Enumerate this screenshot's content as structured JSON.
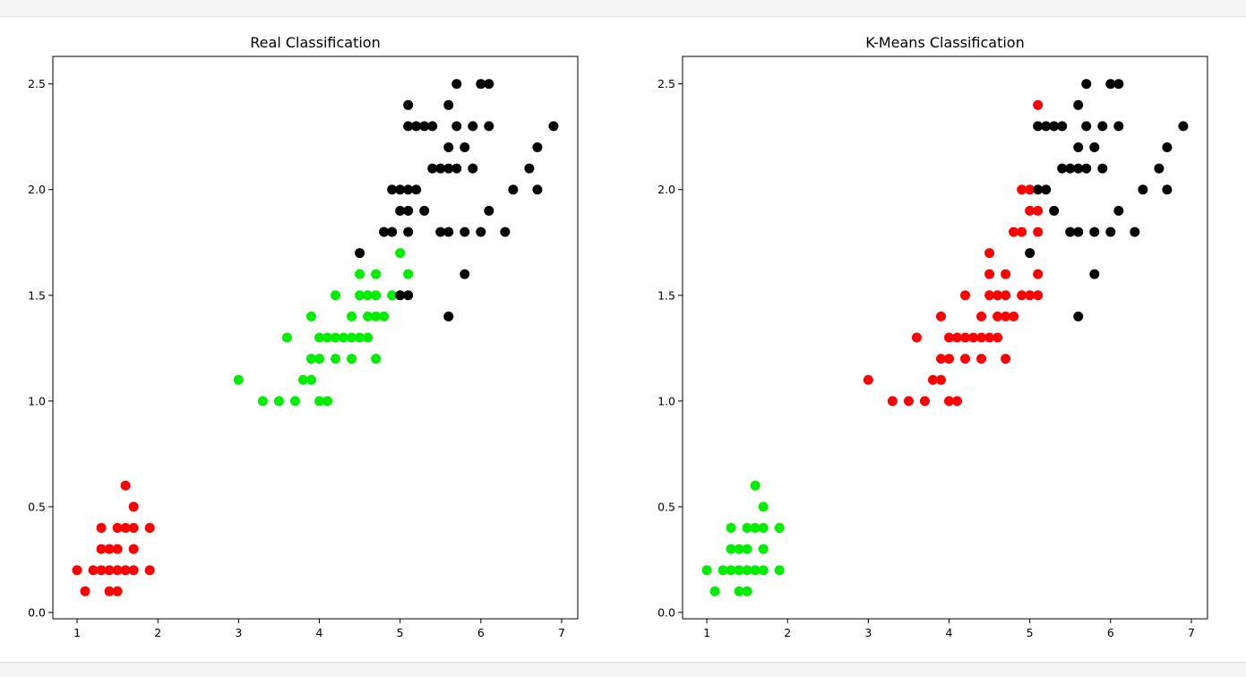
{
  "chart_data": [
    {
      "type": "scatter",
      "title": "Real Classification",
      "xlabel": "",
      "ylabel": "",
      "xlim": [
        0.7,
        7.2
      ],
      "ylim": [
        -0.03,
        2.63
      ],
      "xticks": [
        1,
        2,
        3,
        4,
        5,
        6,
        7
      ],
      "yticks": [
        0.0,
        0.5,
        1.0,
        1.5,
        2.0,
        2.5
      ],
      "grid": false,
      "series": [
        {
          "color": "#ff0000",
          "points": [
            [
              1.0,
              0.2
            ],
            [
              1.1,
              0.1
            ],
            [
              1.2,
              0.2
            ],
            [
              1.3,
              0.2
            ],
            [
              1.3,
              0.3
            ],
            [
              1.3,
              0.4
            ],
            [
              1.4,
              0.1
            ],
            [
              1.4,
              0.2
            ],
            [
              1.4,
              0.3
            ],
            [
              1.5,
              0.1
            ],
            [
              1.5,
              0.2
            ],
            [
              1.5,
              0.3
            ],
            [
              1.5,
              0.4
            ],
            [
              1.6,
              0.2
            ],
            [
              1.6,
              0.4
            ],
            [
              1.6,
              0.6
            ],
            [
              1.7,
              0.2
            ],
            [
              1.7,
              0.3
            ],
            [
              1.7,
              0.4
            ],
            [
              1.7,
              0.5
            ],
            [
              1.9,
              0.2
            ],
            [
              1.9,
              0.4
            ]
          ]
        },
        {
          "color": "#00ee00",
          "points": [
            [
              3.0,
              1.1
            ],
            [
              3.3,
              1.0
            ],
            [
              3.5,
              1.0
            ],
            [
              3.6,
              1.3
            ],
            [
              3.7,
              1.0
            ],
            [
              3.8,
              1.1
            ],
            [
              3.9,
              1.1
            ],
            [
              3.9,
              1.2
            ],
            [
              3.9,
              1.4
            ],
            [
              4.0,
              1.0
            ],
            [
              4.0,
              1.2
            ],
            [
              4.0,
              1.3
            ],
            [
              4.1,
              1.0
            ],
            [
              4.1,
              1.3
            ],
            [
              4.2,
              1.2
            ],
            [
              4.2,
              1.3
            ],
            [
              4.2,
              1.5
            ],
            [
              4.3,
              1.3
            ],
            [
              4.4,
              1.2
            ],
            [
              4.4,
              1.3
            ],
            [
              4.4,
              1.4
            ],
            [
              4.5,
              1.3
            ],
            [
              4.5,
              1.5
            ],
            [
              4.5,
              1.6
            ],
            [
              4.6,
              1.3
            ],
            [
              4.6,
              1.4
            ],
            [
              4.6,
              1.5
            ],
            [
              4.7,
              1.2
            ],
            [
              4.7,
              1.4
            ],
            [
              4.7,
              1.5
            ],
            [
              4.7,
              1.6
            ],
            [
              4.8,
              1.4
            ],
            [
              4.8,
              1.8
            ],
            [
              4.9,
              1.5
            ],
            [
              5.0,
              1.7
            ],
            [
              5.1,
              1.6
            ]
          ]
        },
        {
          "color": "#000000",
          "points": [
            [
              4.5,
              1.7
            ],
            [
              4.8,
              1.8
            ],
            [
              4.9,
              1.8
            ],
            [
              4.9,
              2.0
            ],
            [
              5.0,
              1.5
            ],
            [
              5.0,
              1.9
            ],
            [
              5.0,
              2.0
            ],
            [
              5.1,
              1.5
            ],
            [
              5.1,
              1.8
            ],
            [
              5.1,
              1.9
            ],
            [
              5.1,
              2.0
            ],
            [
              5.1,
              2.3
            ],
            [
              5.1,
              2.4
            ],
            [
              5.2,
              2.0
            ],
            [
              5.2,
              2.3
            ],
            [
              5.3,
              1.9
            ],
            [
              5.3,
              2.3
            ],
            [
              5.4,
              2.1
            ],
            [
              5.4,
              2.3
            ],
            [
              5.5,
              1.8
            ],
            [
              5.5,
              2.1
            ],
            [
              5.6,
              1.4
            ],
            [
              5.6,
              1.8
            ],
            [
              5.6,
              2.1
            ],
            [
              5.6,
              2.2
            ],
            [
              5.6,
              2.4
            ],
            [
              5.7,
              2.1
            ],
            [
              5.7,
              2.3
            ],
            [
              5.7,
              2.5
            ],
            [
              5.8,
              1.6
            ],
            [
              5.8,
              1.8
            ],
            [
              5.8,
              2.2
            ],
            [
              5.9,
              2.1
            ],
            [
              5.9,
              2.3
            ],
            [
              6.0,
              1.8
            ],
            [
              6.0,
              2.5
            ],
            [
              6.1,
              1.9
            ],
            [
              6.1,
              2.3
            ],
            [
              6.1,
              2.5
            ],
            [
              6.3,
              1.8
            ],
            [
              6.4,
              2.0
            ],
            [
              6.6,
              2.1
            ],
            [
              6.7,
              2.0
            ],
            [
              6.7,
              2.2
            ],
            [
              6.9,
              2.3
            ]
          ]
        }
      ]
    },
    {
      "type": "scatter",
      "title": "K-Means Classification",
      "xlabel": "",
      "ylabel": "",
      "xlim": [
        0.7,
        7.2
      ],
      "ylim": [
        -0.03,
        2.63
      ],
      "xticks": [
        1,
        2,
        3,
        4,
        5,
        6,
        7
      ],
      "yticks": [
        0.0,
        0.5,
        1.0,
        1.5,
        2.0,
        2.5
      ],
      "grid": false,
      "series": [
        {
          "color": "#00ee00",
          "points": [
            [
              1.0,
              0.2
            ],
            [
              1.1,
              0.1
            ],
            [
              1.2,
              0.2
            ],
            [
              1.3,
              0.2
            ],
            [
              1.3,
              0.3
            ],
            [
              1.3,
              0.4
            ],
            [
              1.4,
              0.1
            ],
            [
              1.4,
              0.2
            ],
            [
              1.4,
              0.3
            ],
            [
              1.5,
              0.1
            ],
            [
              1.5,
              0.2
            ],
            [
              1.5,
              0.3
            ],
            [
              1.5,
              0.4
            ],
            [
              1.6,
              0.2
            ],
            [
              1.6,
              0.4
            ],
            [
              1.6,
              0.6
            ],
            [
              1.7,
              0.2
            ],
            [
              1.7,
              0.3
            ],
            [
              1.7,
              0.4
            ],
            [
              1.7,
              0.5
            ],
            [
              1.9,
              0.2
            ],
            [
              1.9,
              0.4
            ]
          ]
        },
        {
          "color": "#ff0000",
          "points": [
            [
              3.0,
              1.1
            ],
            [
              3.3,
              1.0
            ],
            [
              3.5,
              1.0
            ],
            [
              3.6,
              1.3
            ],
            [
              3.7,
              1.0
            ],
            [
              3.8,
              1.1
            ],
            [
              3.9,
              1.1
            ],
            [
              3.9,
              1.2
            ],
            [
              3.9,
              1.4
            ],
            [
              4.0,
              1.0
            ],
            [
              4.0,
              1.2
            ],
            [
              4.0,
              1.3
            ],
            [
              4.1,
              1.0
            ],
            [
              4.1,
              1.3
            ],
            [
              4.2,
              1.2
            ],
            [
              4.2,
              1.3
            ],
            [
              4.2,
              1.5
            ],
            [
              4.3,
              1.3
            ],
            [
              4.4,
              1.2
            ],
            [
              4.4,
              1.3
            ],
            [
              4.4,
              1.4
            ],
            [
              4.5,
              1.3
            ],
            [
              4.5,
              1.5
            ],
            [
              4.5,
              1.6
            ],
            [
              4.5,
              1.7
            ],
            [
              4.6,
              1.3
            ],
            [
              4.6,
              1.4
            ],
            [
              4.6,
              1.5
            ],
            [
              4.7,
              1.2
            ],
            [
              4.7,
              1.4
            ],
            [
              4.7,
              1.5
            ],
            [
              4.7,
              1.6
            ],
            [
              4.8,
              1.4
            ],
            [
              4.8,
              1.8
            ],
            [
              4.9,
              1.5
            ],
            [
              4.9,
              1.8
            ],
            [
              4.9,
              2.0
            ],
            [
              5.0,
              1.5
            ],
            [
              5.0,
              1.9
            ],
            [
              5.0,
              2.0
            ],
            [
              5.1,
              1.5
            ],
            [
              5.1,
              1.6
            ],
            [
              5.1,
              1.8
            ],
            [
              5.1,
              1.9
            ],
            [
              5.1,
              2.4
            ]
          ]
        },
        {
          "color": "#000000",
          "points": [
            [
              5.0,
              1.7
            ],
            [
              5.1,
              2.0
            ],
            [
              5.1,
              2.3
            ],
            [
              5.2,
              2.0
            ],
            [
              5.2,
              2.3
            ],
            [
              5.3,
              1.9
            ],
            [
              5.3,
              2.3
            ],
            [
              5.4,
              2.1
            ],
            [
              5.4,
              2.3
            ],
            [
              5.5,
              1.8
            ],
            [
              5.5,
              2.1
            ],
            [
              5.6,
              1.4
            ],
            [
              5.6,
              1.8
            ],
            [
              5.6,
              2.1
            ],
            [
              5.6,
              2.2
            ],
            [
              5.6,
              2.4
            ],
            [
              5.7,
              2.1
            ],
            [
              5.7,
              2.3
            ],
            [
              5.7,
              2.5
            ],
            [
              5.8,
              1.6
            ],
            [
              5.8,
              1.8
            ],
            [
              5.8,
              2.2
            ],
            [
              5.9,
              2.1
            ],
            [
              5.9,
              2.3
            ],
            [
              6.0,
              1.8
            ],
            [
              6.0,
              2.5
            ],
            [
              6.1,
              1.9
            ],
            [
              6.1,
              2.3
            ],
            [
              6.1,
              2.5
            ],
            [
              6.3,
              1.8
            ],
            [
              6.4,
              2.0
            ],
            [
              6.6,
              2.1
            ],
            [
              6.7,
              2.0
            ],
            [
              6.7,
              2.2
            ],
            [
              6.9,
              2.3
            ]
          ]
        }
      ]
    }
  ]
}
